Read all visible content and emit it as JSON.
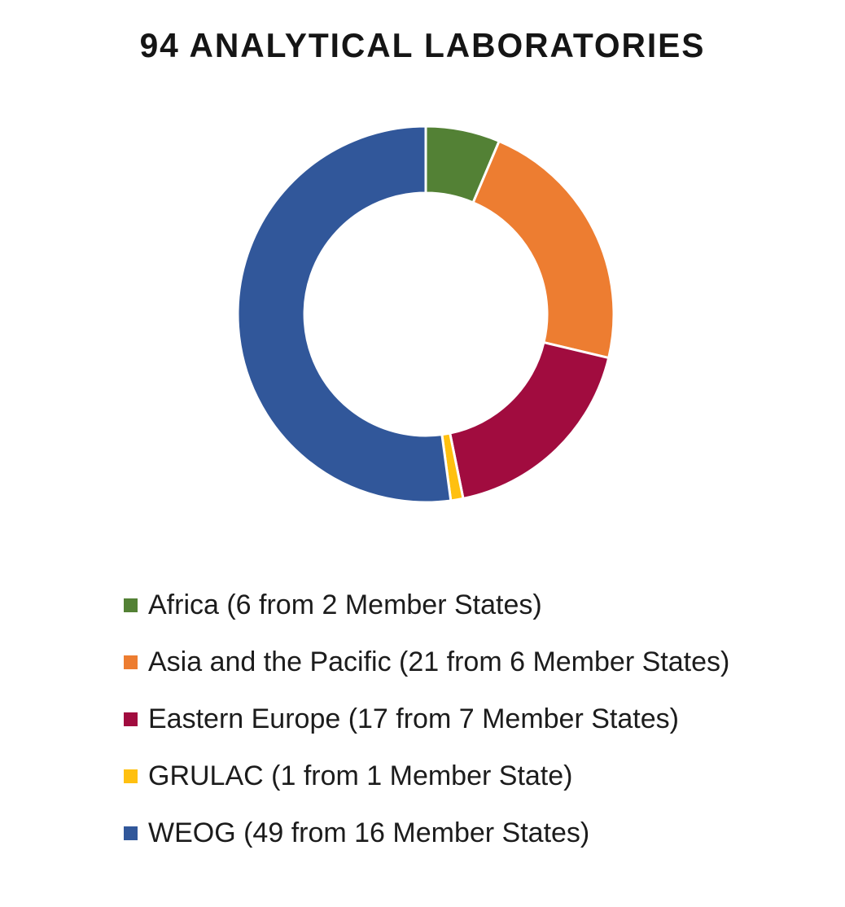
{
  "title": "94 ANALYTICAL LABORATORIES",
  "chart_data": {
    "type": "pie",
    "subtype": "donut",
    "title": "94 ANALYTICAL LABORATORIES",
    "total": 94,
    "start_angle_deg": 0,
    "direction": "clockwise",
    "inner_radius_ratio": 0.645,
    "legend_position": "bottom-left",
    "background_color": "#ffffff",
    "slice_gap_color": "#ffffff",
    "slices": [
      {
        "name": "Africa",
        "value": 6,
        "member_states": 2,
        "label": "Africa (6 from 2 Member States)",
        "color": "#538135"
      },
      {
        "name": "Asia and the Pacific",
        "value": 21,
        "member_states": 6,
        "label": "Asia and the Pacific (21 from 6 Member States)",
        "color": "#ED7D31"
      },
      {
        "name": "Eastern Europe",
        "value": 17,
        "member_states": 7,
        "label": "Eastern Europe (17 from 7 Member States)",
        "color": "#A10C3F"
      },
      {
        "name": "GRULAC",
        "value": 1,
        "member_states": 1,
        "label": "GRULAC (1 from 1 Member State)",
        "color": "#FFC010"
      },
      {
        "name": "WEOG",
        "value": 49,
        "member_states": 16,
        "label": "WEOG (49 from 16 Member States)",
        "color": "#31579A"
      }
    ]
  }
}
